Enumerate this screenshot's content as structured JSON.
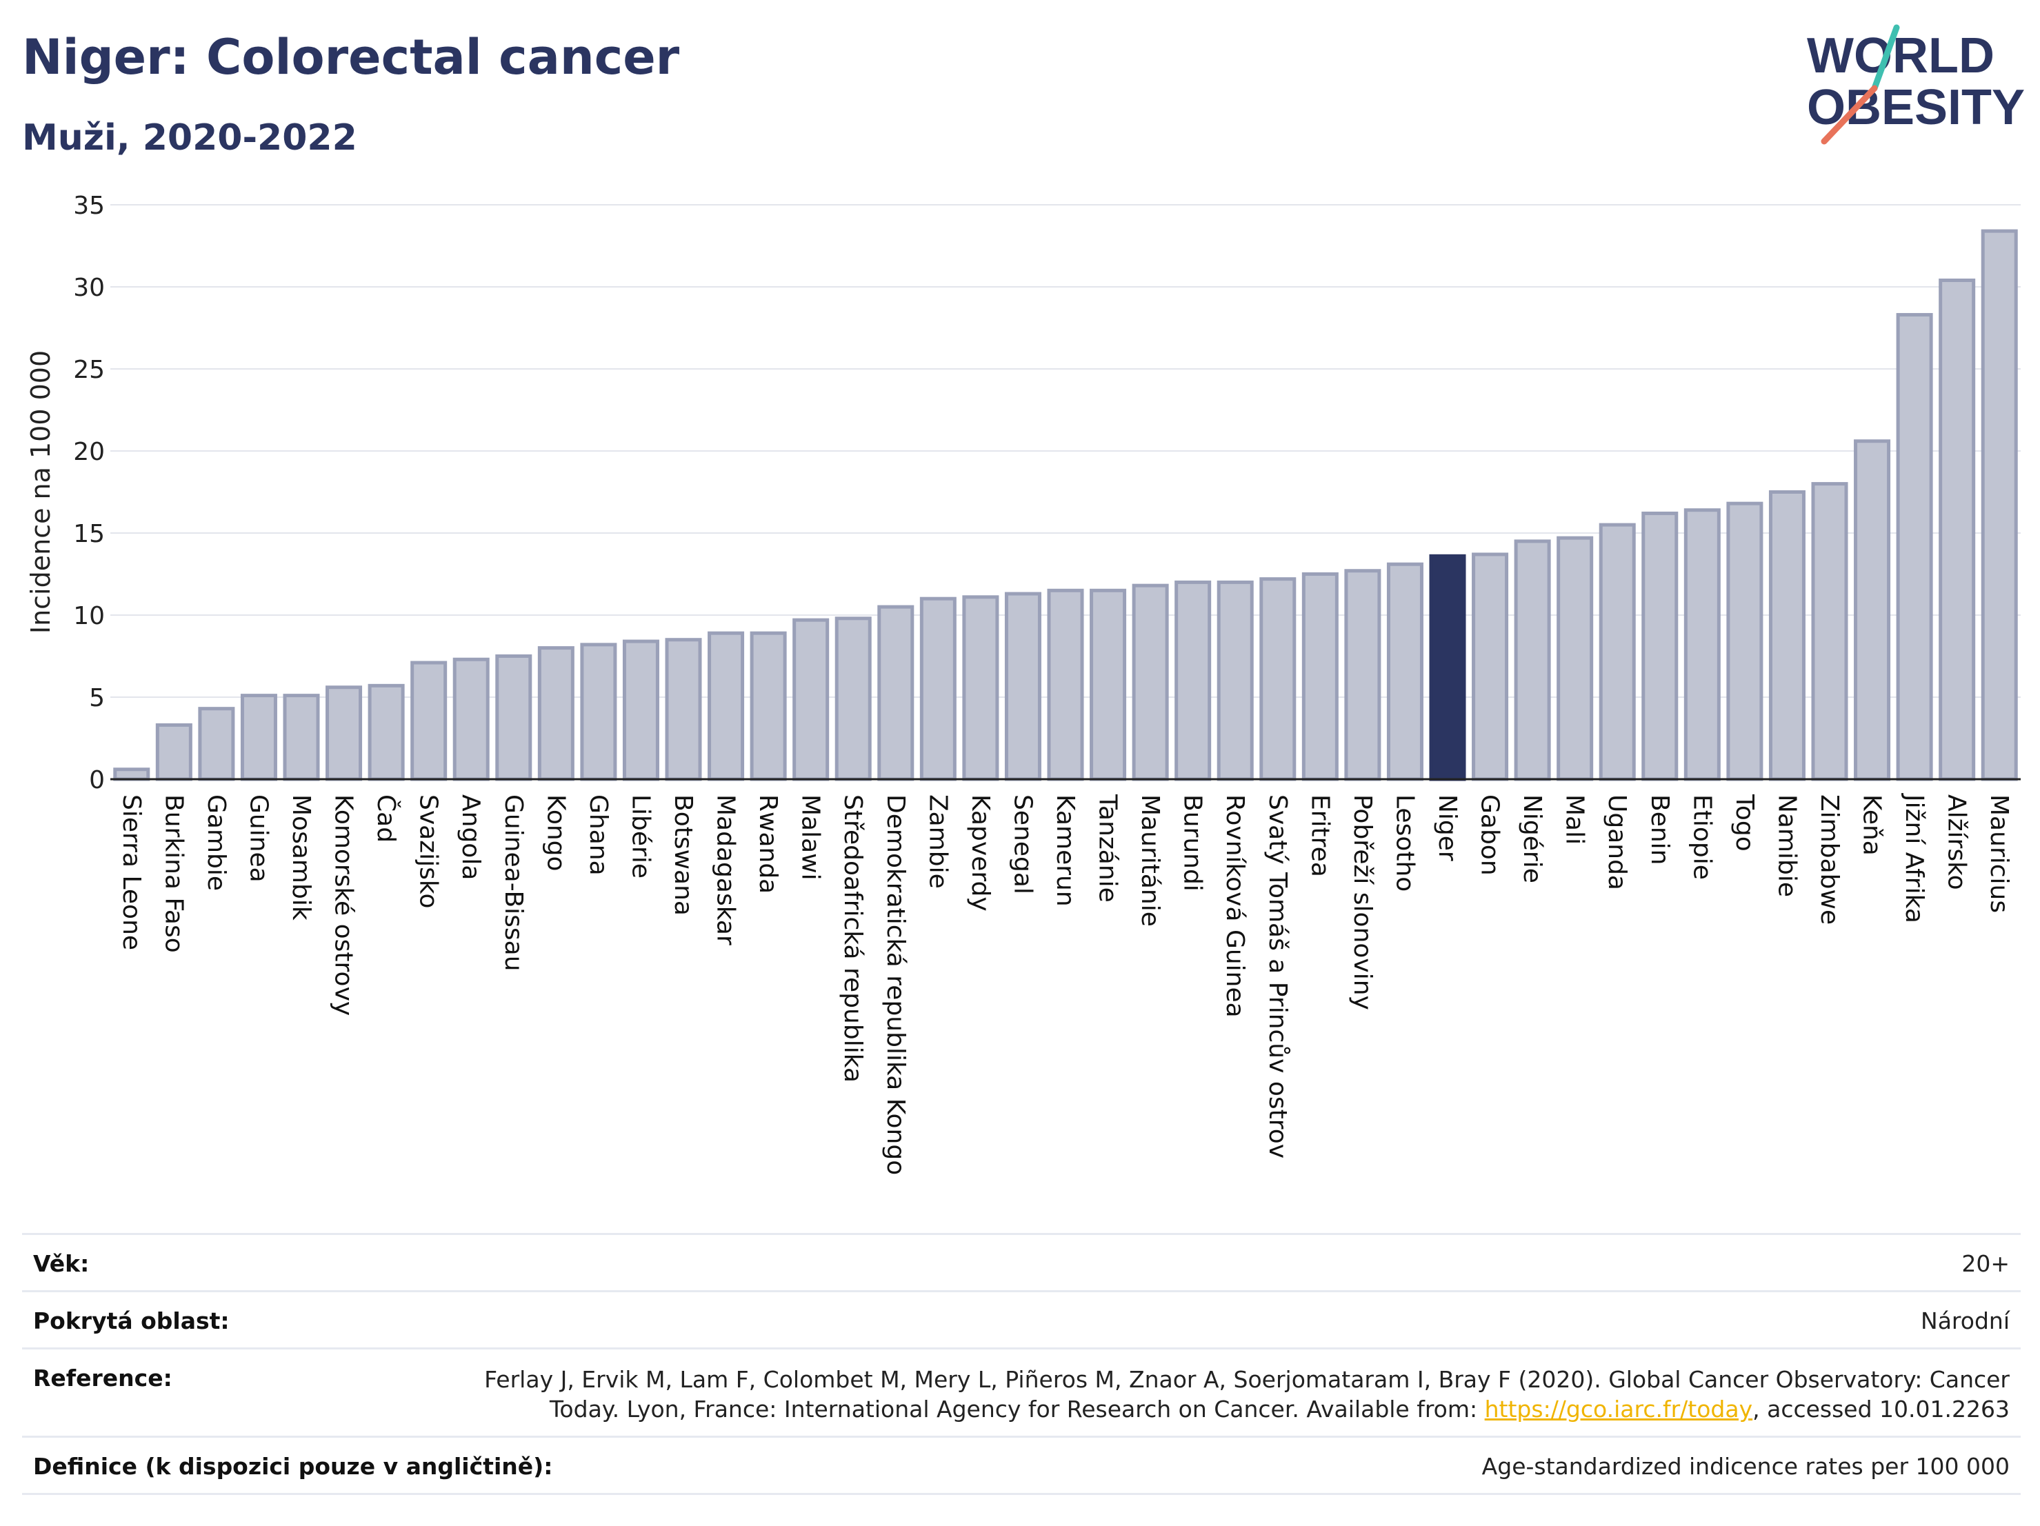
{
  "header": {
    "title": "Niger: Colorectal cancer",
    "subtitle": "Muži, 2020-2022"
  },
  "logo": {
    "line1": "WORLD",
    "line2": "OBESITY"
  },
  "colors": {
    "bar_default": "#c0c4d2",
    "bar_default_stroke": "#9aa0b8",
    "bar_highlight": "#2b3561",
    "title": "#2b3561",
    "link": "#f0b400"
  },
  "chart_data": {
    "type": "bar",
    "ylabel": "Incidence na 100 000",
    "ylim": [
      0,
      35
    ],
    "yticks": [
      0,
      5,
      10,
      15,
      20,
      25,
      30,
      35
    ],
    "grid": true,
    "highlight": "Niger",
    "categories": [
      "Sierra Leone",
      "Burkina Faso",
      "Gambie",
      "Guinea",
      "Mosambik",
      "Komorské ostrovy",
      "Čad",
      "Svazijsko",
      "Angola",
      "Guinea-Bissau",
      "Kongo",
      "Ghana",
      "Libérie",
      "Botswana",
      "Madagaskar",
      "Rwanda",
      "Malawi",
      "Středoafrická republika",
      "Demokratická republika Kongo",
      "Zambie",
      "Kapverdy",
      "Senegal",
      "Kamerun",
      "Tanzánie",
      "Mauritánie",
      "Burundi",
      "Rovníková Guinea",
      "Svatý Tomáš a Princův ostrov",
      "Eritrea",
      "Pobřeží slonoviny",
      "Lesotho",
      "Niger",
      "Gabon",
      "Nigérie",
      "Mali",
      "Uganda",
      "Benin",
      "Etiopie",
      "Togo",
      "Namibie",
      "Zimbabwe",
      "Keňa",
      "Jižní Afrika",
      "Alžírsko",
      "Mauricius"
    ],
    "values": [
      0.6,
      3.3,
      4.3,
      5.1,
      5.1,
      5.6,
      5.7,
      7.1,
      7.3,
      7.5,
      8.0,
      8.2,
      8.4,
      8.5,
      8.9,
      8.9,
      9.7,
      9.8,
      10.5,
      11.0,
      11.1,
      11.3,
      11.5,
      11.5,
      11.8,
      12.0,
      12.0,
      12.2,
      12.5,
      12.7,
      13.1,
      13.6,
      13.7,
      14.5,
      14.7,
      15.5,
      16.2,
      16.4,
      16.8,
      17.5,
      18.0,
      20.6,
      28.3,
      30.4,
      33.4
    ]
  },
  "info_table": {
    "rows": [
      {
        "label": "Věk:",
        "value": "20+"
      },
      {
        "label": "Pokrytá oblast:",
        "value": "Národní"
      },
      {
        "label": "Reference:",
        "value_line1": "Ferlay J, Ervik M, Lam F, Colombet M, Mery L, Piñeros M, Znaor A, Soerjomataram I, Bray F (2020). Global Cancer Observatory: Cancer",
        "value_line2_pre": "Today. Lyon, France: International Agency for Research on Cancer. Available from: ",
        "value_link": "https://gco.iarc.fr/today",
        "value_line2_post": ", accessed 10.01.2263"
      },
      {
        "label": "Definice (k dispozici pouze v angličtině):",
        "value": "Age-standardized indicence rates per 100 000"
      }
    ]
  }
}
